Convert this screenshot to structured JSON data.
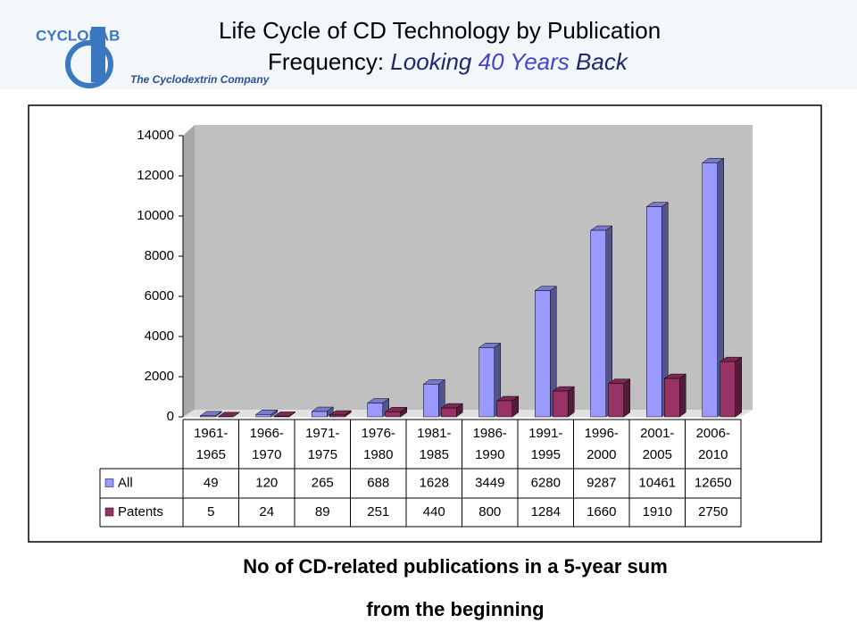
{
  "slide": {
    "logo_name": "CYCLOLAB",
    "logo_tagline": "The Cyclodextrin Company",
    "title_line1": "Life Cycle of CD Technology by Publication",
    "title_line2": [
      "Frequency:",
      "Looking",
      "40 Years",
      "Back"
    ],
    "caption": [
      "No of CD-related publications in a 5-year sum",
      "from the beginning"
    ]
  },
  "chart_data": {
    "type": "bar",
    "categories": [
      "1961-1965",
      "1966-1970",
      "1971-1975",
      "1976-1980",
      "1981-1985",
      "1986-1990",
      "1991-1995",
      "1996-2000",
      "2001-2005",
      "2006-2010"
    ],
    "series": [
      {
        "name": "All",
        "color": "#9999ff",
        "values": [
          49,
          120,
          265,
          688,
          1628,
          3449,
          6280,
          9287,
          10461,
          12650
        ]
      },
      {
        "name": "Patents",
        "color": "#993366",
        "values": [
          5,
          24,
          89,
          251,
          440,
          800,
          1284,
          1660,
          1910,
          2750
        ]
      }
    ],
    "ylim": [
      0,
      14000
    ],
    "yticks": [
      0,
      2000,
      4000,
      6000,
      8000,
      10000,
      12000,
      14000
    ],
    "grid": false
  }
}
